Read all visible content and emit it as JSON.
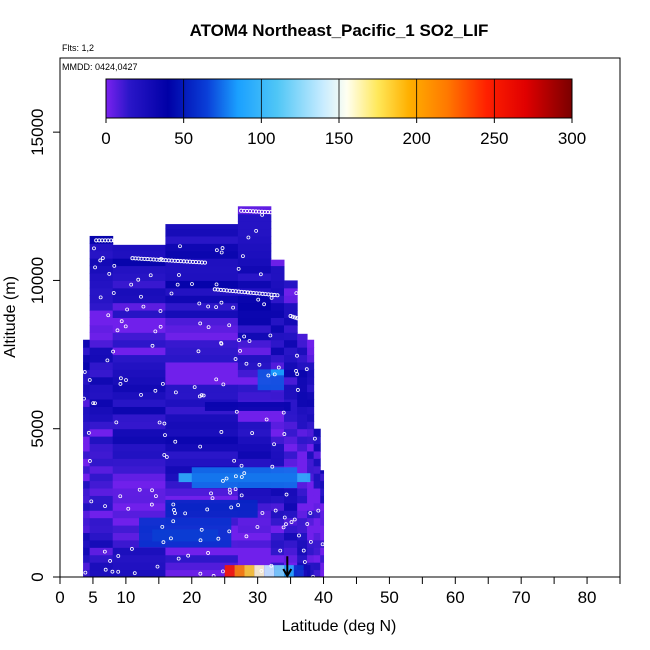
{
  "chart_data": {
    "type": "heatmap",
    "title": "ATOM4 Northeast_Pacific_1 SO2_LIF",
    "subtitle_flights": "Flts: 1,2",
    "subtitle_dates": "MMDD: 0424,0427",
    "xlabel": "Latitude (deg N)",
    "ylabel": "Altitude (m)",
    "xlim": [
      0,
      85
    ],
    "ylim": [
      0,
      17500
    ],
    "x_ticks": [
      0,
      5,
      10,
      20,
      30,
      40,
      50,
      60,
      70,
      80
    ],
    "x_minor_ticks": [
      15,
      25,
      35,
      45,
      55,
      65,
      75,
      85
    ],
    "y_ticks": [
      0,
      5000,
      10000,
      15000
    ],
    "colorbar": {
      "range": [
        0,
        300
      ],
      "ticks": [
        0,
        50,
        100,
        150,
        200,
        250,
        300
      ],
      "stops": [
        {
          "v": 0,
          "c": "#7b22f0"
        },
        {
          "v": 15,
          "c": "#2a16c8"
        },
        {
          "v": 40,
          "c": "#0000a6"
        },
        {
          "v": 65,
          "c": "#0a3fd8"
        },
        {
          "v": 85,
          "c": "#1aa0ff"
        },
        {
          "v": 110,
          "c": "#4fc6f6"
        },
        {
          "v": 140,
          "c": "#c9ecff"
        },
        {
          "v": 155,
          "c": "#fffff0"
        },
        {
          "v": 175,
          "c": "#ffe85a"
        },
        {
          "v": 195,
          "c": "#ffb000"
        },
        {
          "v": 220,
          "c": "#ff7800"
        },
        {
          "v": 245,
          "c": "#ff2000"
        },
        {
          "v": 270,
          "c": "#e00000"
        },
        {
          "v": 300,
          "c": "#7a0000"
        }
      ]
    },
    "columns": [
      {
        "x0": 3.5,
        "x1": 4.5,
        "top": 8000
      },
      {
        "x0": 4.5,
        "x1": 8,
        "top": 11500
      },
      {
        "x0": 8,
        "x1": 16,
        "top": 11200
      },
      {
        "x0": 16,
        "x1": 27,
        "top": 11900
      },
      {
        "x0": 27,
        "x1": 32,
        "top": 12500
      },
      {
        "x0": 32,
        "x1": 34,
        "top": 10700
      },
      {
        "x0": 34,
        "x1": 36,
        "top": 10000
      },
      {
        "x0": 36,
        "x1": 37.5,
        "top": 8200
      },
      {
        "x0": 37.5,
        "x1": 38.5,
        "top": 8000
      },
      {
        "x0": 38.5,
        "x1": 39.5,
        "top": 5000
      },
      {
        "x0": 39.5,
        "x1": 40,
        "top": 3600
      }
    ],
    "patches": [
      {
        "x0": 18,
        "x1": 38,
        "y0": 3200,
        "y1": 3500,
        "v": 95
      },
      {
        "x0": 20,
        "x1": 36,
        "y0": 3000,
        "y1": 3700,
        "v": 75
      },
      {
        "x0": 14,
        "x1": 24,
        "y0": 1200,
        "y1": 1600,
        "v": 90
      },
      {
        "x0": 12,
        "x1": 26,
        "y0": 1000,
        "y1": 2000,
        "v": 60
      },
      {
        "x0": 16,
        "x1": 30,
        "y0": 2000,
        "y1": 2600,
        "v": 55
      },
      {
        "x0": 30,
        "x1": 34,
        "y0": 6300,
        "y1": 7000,
        "v": 70
      },
      {
        "x0": 32,
        "x1": 34,
        "y0": 6800,
        "y1": 7000,
        "v": 85
      },
      {
        "x0": 22,
        "x1": 35,
        "y0": 5600,
        "y1": 5900,
        "v": 35
      },
      {
        "x0": 25,
        "x1": 26.5,
        "y0": 0,
        "y1": 400,
        "v": 250
      },
      {
        "x0": 26.5,
        "x1": 28,
        "y0": 0,
        "y1": 400,
        "v": 215
      },
      {
        "x0": 28,
        "x1": 29.5,
        "y0": 0,
        "y1": 400,
        "v": 185
      },
      {
        "x0": 29.5,
        "x1": 31,
        "y0": 0,
        "y1": 400,
        "v": 160
      },
      {
        "x0": 31,
        "x1": 32.5,
        "y0": 0,
        "y1": 400,
        "v": 140
      },
      {
        "x0": 32.5,
        "x1": 34,
        "y0": 0,
        "y1": 400,
        "v": 120
      },
      {
        "x0": 34,
        "x1": 35.5,
        "y0": 0,
        "y1": 400,
        "v": 90
      },
      {
        "x0": 35.5,
        "x1": 37,
        "y0": 0,
        "y1": 400,
        "v": 60
      },
      {
        "x0": 37,
        "x1": 38,
        "y0": 0,
        "y1": 400,
        "v": 30
      }
    ],
    "track_segments": [
      {
        "x0": 5.5,
        "x1": 10.5,
        "y0": 11350,
        "y1": 11350
      },
      {
        "x0": 11,
        "x1": 22,
        "y0": 10750,
        "y1": 10600
      },
      {
        "x0": 23.5,
        "x1": 33,
        "y0": 9700,
        "y1": 9500
      },
      {
        "x0": 27.5,
        "x1": 32,
        "y0": 12350,
        "y1": 12300
      },
      {
        "x0": 35,
        "x1": 37,
        "y0": 8800,
        "y1": 8650
      }
    ],
    "arrow": {
      "x": 34.5,
      "y_from": 700,
      "y_to": 0
    }
  }
}
